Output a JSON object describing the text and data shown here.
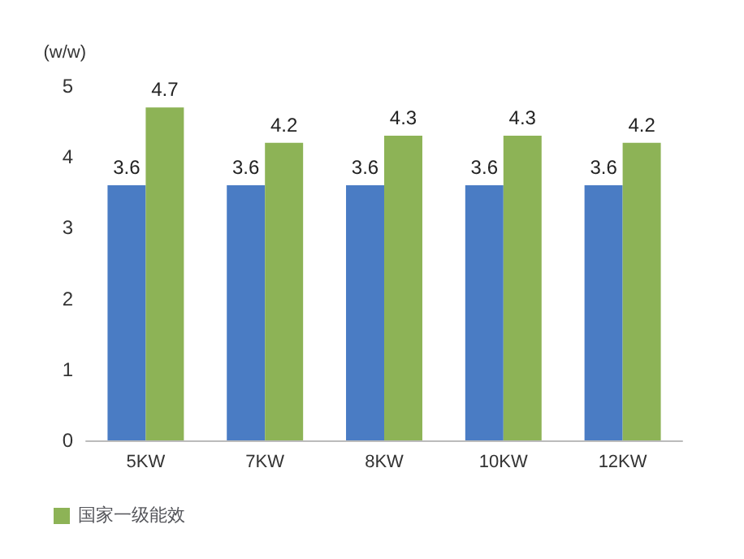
{
  "chart_data": {
    "type": "bar",
    "ylabel": "(w/w)",
    "categories": [
      "5KW",
      "7KW",
      "8KW",
      "10KW",
      "12KW"
    ],
    "series": [
      {
        "color": "#4a7cc4",
        "values": [
          3.6,
          3.6,
          3.6,
          3.6,
          3.6
        ]
      },
      {
        "name": "国家一级能效",
        "color": "#8db356",
        "values": [
          4.7,
          4.2,
          4.3,
          4.3,
          4.2
        ]
      }
    ],
    "ylim": [
      0,
      5
    ],
    "yticks": [
      0,
      1,
      2,
      3,
      4,
      5
    ],
    "data_labels": true,
    "grid": false,
    "legend": "bottom left"
  }
}
